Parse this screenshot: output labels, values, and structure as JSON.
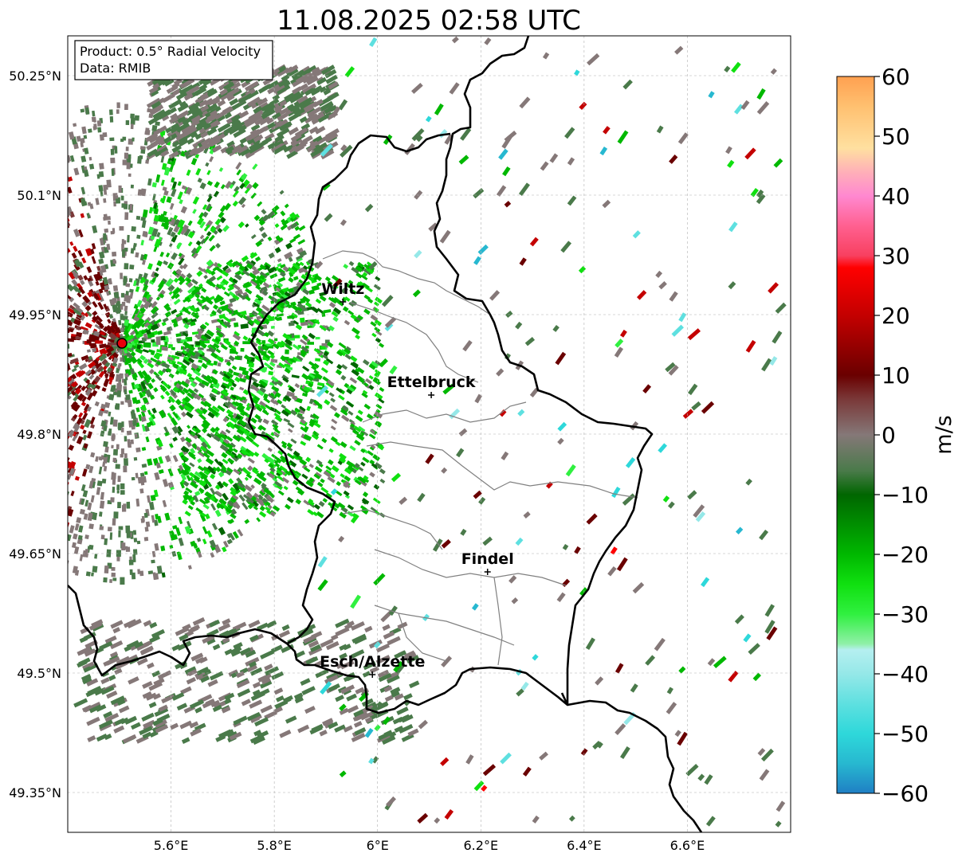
{
  "title": "11.08.2025 02:58 UTC",
  "info": {
    "product": "Product: 0.5° Radial Velocity",
    "data": "Data: RMIB"
  },
  "axes": {
    "lon_ticks": [
      {
        "value": 5.6,
        "label": "5.6°E"
      },
      {
        "value": 5.8,
        "label": "5.8°E"
      },
      {
        "value": 6.0,
        "label": "6°E"
      },
      {
        "value": 6.2,
        "label": "6.2°E"
      },
      {
        "value": 6.4,
        "label": "6.4°E"
      },
      {
        "value": 6.6,
        "label": "6.6°E"
      }
    ],
    "lat_ticks": [
      {
        "value": 50.25,
        "label": "50.25°N"
      },
      {
        "value": 50.1,
        "label": "50.1°N"
      },
      {
        "value": 49.95,
        "label": "49.95°N"
      },
      {
        "value": 49.8,
        "label": "49.8°N"
      },
      {
        "value": 49.65,
        "label": "49.65°N"
      },
      {
        "value": 49.5,
        "label": "49.5°N"
      },
      {
        "value": 49.35,
        "label": "49.35°N"
      }
    ],
    "lon_range": [
      5.4,
      6.8
    ],
    "lat_range": [
      49.3,
      50.3
    ],
    "grid": true
  },
  "radar": {
    "lon": 5.505,
    "lat": 49.914,
    "color": "#e8000b"
  },
  "cities": [
    {
      "name": "Wiltz",
      "lon": 5.933,
      "lat": 49.966
    },
    {
      "name": "Ettelbruck",
      "lon": 6.104,
      "lat": 49.849
    },
    {
      "name": "Findel",
      "lon": 6.213,
      "lat": 49.627
    },
    {
      "name": "Esch/Alzette",
      "lon": 5.99,
      "lat": 49.498
    }
  ],
  "colorbar": {
    "label": "m/s",
    "min": -60,
    "max": 60,
    "ticks": [
      60,
      50,
      40,
      30,
      20,
      10,
      0,
      -10,
      -20,
      -30,
      -40,
      -50,
      -60
    ],
    "tick_labels": [
      "60",
      "50",
      "40",
      "30",
      "20",
      "10",
      "0",
      "−10",
      "−20",
      "−30",
      "−40",
      "−50",
      "−60"
    ],
    "stops": [
      {
        "v": -60,
        "c": "#1f7fc4"
      },
      {
        "v": -55,
        "c": "#27b8d0"
      },
      {
        "v": -50,
        "c": "#2ed8da"
      },
      {
        "v": -45,
        "c": "#5ee0e0"
      },
      {
        "v": -40,
        "c": "#95e8e8"
      },
      {
        "v": -36,
        "c": "#b5eff0"
      },
      {
        "v": -35,
        "c": "#90f0a8"
      },
      {
        "v": -30,
        "c": "#30f040"
      },
      {
        "v": -25,
        "c": "#10e010"
      },
      {
        "v": -20,
        "c": "#00b800"
      },
      {
        "v": -10,
        "c": "#006600"
      },
      {
        "v": -6,
        "c": "#4a7a4a"
      },
      {
        "v": 0,
        "c": "#857878"
      },
      {
        "v": 6,
        "c": "#7a3838"
      },
      {
        "v": 10,
        "c": "#6a0000"
      },
      {
        "v": 20,
        "c": "#c40000"
      },
      {
        "v": 28,
        "c": "#ff0000"
      },
      {
        "v": 30,
        "c": "#f84060"
      },
      {
        "v": 35,
        "c": "#ff6090"
      },
      {
        "v": 40,
        "c": "#ff88d0"
      },
      {
        "v": 44,
        "c": "#ffb0b8"
      },
      {
        "v": 48,
        "c": "#ffe0a0"
      },
      {
        "v": 55,
        "c": "#ffc070"
      },
      {
        "v": 60,
        "c": "#ffa050"
      }
    ]
  }
}
